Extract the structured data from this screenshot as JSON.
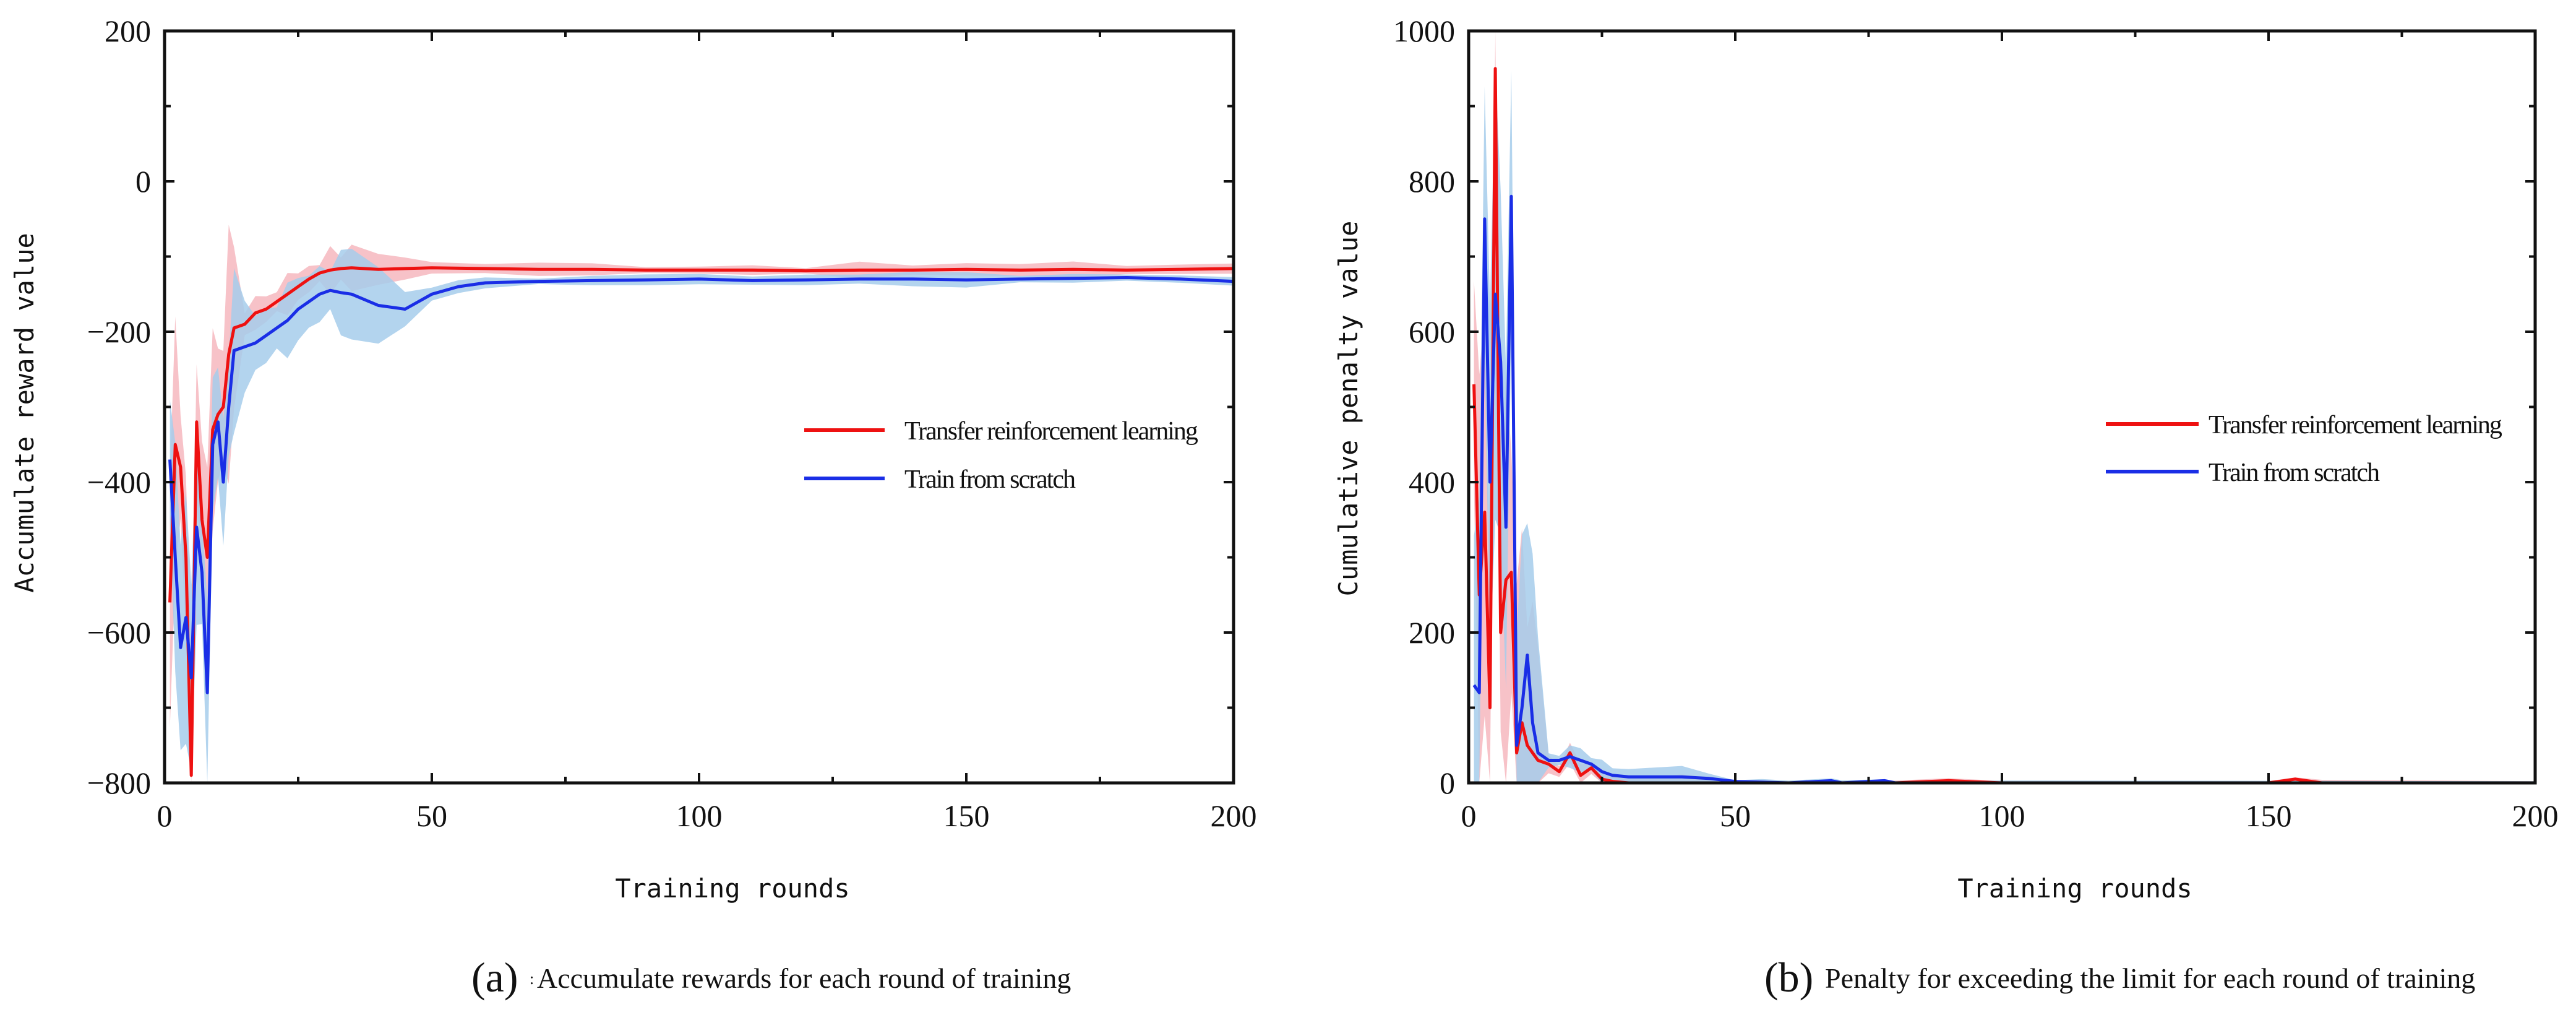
{
  "chart_data": [
    {
      "id": "a",
      "type": "line",
      "caption_letter": "(a)",
      "caption_marker": ":",
      "caption_text": "Accumulate rewards for each round of training",
      "xlabel": "Training rounds",
      "ylabel": "Accumulate reward value",
      "xlim": [
        0,
        200
      ],
      "ylim": [
        -800,
        200
      ],
      "xticks": [
        0,
        50,
        100,
        150,
        200
      ],
      "xtick_labels": [
        "0",
        "50",
        "100",
        "150",
        "200"
      ],
      "yticks": [
        -800,
        -600,
        -400,
        -200,
        0,
        200
      ],
      "ytick_labels": [
        "−800",
        "−600",
        "−400",
        "−200",
        "0",
        "200"
      ],
      "legend_position": "center-right",
      "series": [
        {
          "name": "Transfer reinforcement learning",
          "color": "#ee1111",
          "band_color": "#f4a8b0",
          "x": [
            1,
            2,
            3,
            4,
            5,
            6,
            7,
            8,
            9,
            10,
            11,
            12,
            13,
            15,
            17,
            19,
            21,
            23,
            25,
            27,
            29,
            31,
            33,
            35,
            40,
            45,
            50,
            60,
            70,
            80,
            90,
            100,
            110,
            120,
            130,
            140,
            150,
            160,
            170,
            180,
            190,
            200
          ],
          "values": [
            -560,
            -350,
            -380,
            -500,
            -790,
            -320,
            -450,
            -500,
            -330,
            -310,
            -300,
            -230,
            -195,
            -190,
            -175,
            -170,
            -160,
            -150,
            -140,
            -130,
            -122,
            -118,
            -116,
            -115,
            -117,
            -116,
            -115,
            -116,
            -117,
            -117,
            -118,
            -118,
            -118,
            -119,
            -118,
            -118,
            -117,
            -118,
            -117,
            -118,
            -117,
            -116
          ]
        },
        {
          "name": "Train from scratch",
          "color": "#1a2ee6",
          "band_color": "#a6cceb",
          "x": [
            1,
            2,
            3,
            4,
            5,
            6,
            7,
            8,
            9,
            10,
            11,
            12,
            13,
            15,
            17,
            19,
            21,
            23,
            25,
            27,
            29,
            31,
            33,
            35,
            40,
            45,
            50,
            55,
            60,
            70,
            80,
            90,
            100,
            110,
            120,
            130,
            140,
            150,
            160,
            170,
            180,
            190,
            200
          ],
          "values": [
            -370,
            -500,
            -620,
            -580,
            -660,
            -460,
            -520,
            -680,
            -350,
            -320,
            -400,
            -300,
            -225,
            -220,
            -215,
            -205,
            -195,
            -185,
            -170,
            -160,
            -150,
            -145,
            -148,
            -150,
            -165,
            -170,
            -150,
            -140,
            -135,
            -133,
            -132,
            -131,
            -130,
            -132,
            -131,
            -130,
            -130,
            -131,
            -130,
            -129,
            -128,
            -130,
            -133
          ]
        }
      ]
    },
    {
      "id": "b",
      "type": "line",
      "caption_letter": "(b)",
      "caption_text": "Penalty for exceeding the limit for each round of training",
      "xlabel": "Training rounds",
      "ylabel": "Cumulative penalty value",
      "xlim": [
        0,
        200
      ],
      "ylim": [
        0,
        1000
      ],
      "xticks": [
        0,
        50,
        100,
        150,
        200
      ],
      "xtick_labels": [
        "0",
        "50",
        "100",
        "150",
        "200"
      ],
      "yticks": [
        0,
        200,
        400,
        600,
        800,
        1000
      ],
      "ytick_labels": [
        "0",
        "200",
        "400",
        "600",
        "800",
        "1000"
      ],
      "legend_position": "center-right",
      "series": [
        {
          "name": "Transfer reinforcement learning",
          "color": "#ee1111",
          "band_color": "#f4a8b0",
          "x": [
            1,
            2,
            3,
            4,
            5,
            6,
            7,
            8,
            9,
            10,
            11,
            12,
            13,
            15,
            17,
            19,
            21,
            23,
            25,
            27,
            30,
            40,
            50,
            60,
            80,
            90,
            100,
            150,
            155,
            160,
            200
          ],
          "values": [
            530,
            250,
            360,
            100,
            950,
            200,
            270,
            280,
            40,
            80,
            50,
            40,
            30,
            25,
            15,
            40,
            10,
            20,
            5,
            2,
            0,
            0,
            0,
            0,
            0,
            3,
            0,
            0,
            5,
            0,
            0
          ]
        },
        {
          "name": "Train from scratch",
          "color": "#1a2ee6",
          "band_color": "#a6cceb",
          "x": [
            1,
            2,
            3,
            4,
            5,
            6,
            7,
            8,
            9,
            10,
            11,
            12,
            13,
            15,
            17,
            19,
            21,
            23,
            25,
            27,
            30,
            40,
            45,
            50,
            55,
            60,
            68,
            70,
            78,
            80,
            100,
            200
          ],
          "values": [
            130,
            120,
            750,
            400,
            650,
            560,
            340,
            780,
            50,
            100,
            170,
            80,
            40,
            30,
            30,
            35,
            30,
            25,
            15,
            10,
            8,
            8,
            6,
            2,
            1,
            0,
            3,
            0,
            3,
            0,
            0,
            0
          ]
        }
      ]
    }
  ]
}
